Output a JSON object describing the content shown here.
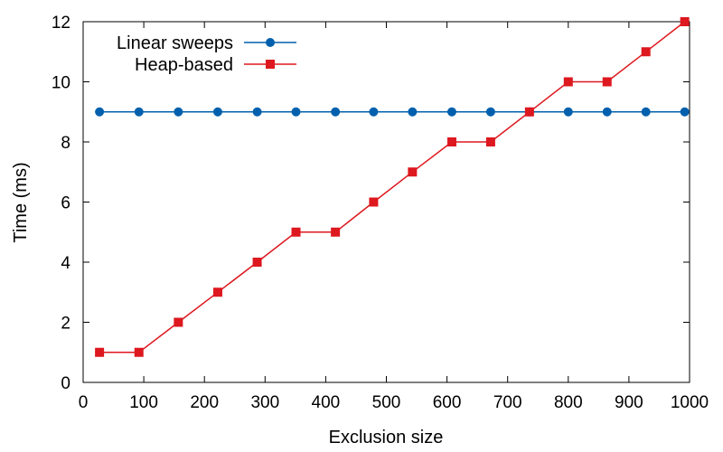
{
  "chart_data": {
    "type": "line",
    "xlabel": "Exclusion size",
    "ylabel": "Time (ms)",
    "xlim": [
      0,
      1000
    ],
    "ylim": [
      0,
      12
    ],
    "xticks": [
      0,
      100,
      200,
      300,
      400,
      500,
      600,
      700,
      800,
      900,
      1000
    ],
    "yticks": [
      0,
      2,
      4,
      6,
      8,
      10,
      12
    ],
    "grid": false,
    "legend_position": "top-left",
    "series": [
      {
        "name": "Linear sweeps",
        "color": "#0060ad",
        "marker": "circle",
        "x": [
          27,
          92,
          157,
          222,
          287,
          351,
          416,
          479,
          543,
          608,
          672,
          736,
          800,
          864,
          928,
          992
        ],
        "y": [
          9,
          9,
          9,
          9,
          9,
          9,
          9,
          9,
          9,
          9,
          9,
          9,
          9,
          9,
          9,
          9
        ]
      },
      {
        "name": "Heap-based",
        "color": "#dd181f",
        "marker": "square",
        "x": [
          27,
          92,
          157,
          222,
          287,
          351,
          416,
          479,
          543,
          608,
          672,
          736,
          800,
          864,
          928,
          992
        ],
        "y": [
          1,
          1,
          2,
          3,
          4,
          5,
          5,
          6,
          7,
          8,
          8,
          9,
          10,
          10,
          11,
          12
        ]
      }
    ]
  }
}
